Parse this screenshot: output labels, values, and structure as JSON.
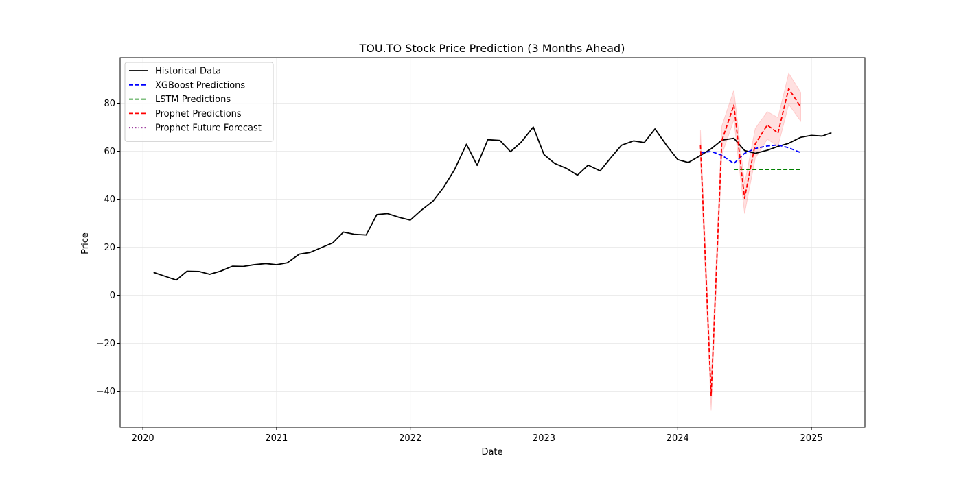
{
  "chart_data": {
    "type": "line",
    "title": "TOU.TO Stock Price Prediction (3 Months Ahead)",
    "xlabel": "Date",
    "ylabel": "Price",
    "xlim": [
      2019.83,
      2025.4
    ],
    "ylim": [
      -55,
      99
    ],
    "x_ticks": [
      2020,
      2021,
      2022,
      2023,
      2024,
      2025
    ],
    "x_tick_labels": [
      "2020",
      "2021",
      "2022",
      "2023",
      "2024",
      "2025"
    ],
    "y_ticks": [
      -40,
      -20,
      0,
      20,
      40,
      60,
      80
    ],
    "y_tick_labels": [
      "−40",
      "−20",
      "0",
      "20",
      "40",
      "60",
      "80"
    ],
    "grid": true,
    "legend_position": "upper-left",
    "series": [
      {
        "name": "Historical Data",
        "color": "#000000",
        "style": "solid",
        "x": [
          2020.08,
          2020.17,
          2020.25,
          2020.33,
          2020.42,
          2020.5,
          2020.58,
          2020.67,
          2020.75,
          2020.83,
          2020.92,
          2021.0,
          2021.08,
          2021.17,
          2021.25,
          2021.33,
          2021.42,
          2021.5,
          2021.58,
          2021.67,
          2021.75,
          2021.83,
          2021.92,
          2022.0,
          2022.08,
          2022.17,
          2022.25,
          2022.33,
          2022.42,
          2022.5,
          2022.58,
          2022.67,
          2022.75,
          2022.83,
          2022.92,
          2023.0,
          2023.08,
          2023.17,
          2023.25,
          2023.33,
          2023.42,
          2023.5,
          2023.58,
          2023.67,
          2023.75,
          2023.83,
          2023.92,
          2024.0,
          2024.08,
          2024.17,
          2024.25,
          2024.33,
          2024.42,
          2024.5,
          2024.58,
          2024.67,
          2024.75,
          2024.83,
          2024.92,
          2025.0,
          2025.08,
          2025.15
        ],
        "values": [
          9.5,
          7.8,
          6.3,
          10.0,
          9.9,
          8.7,
          10.0,
          12.1,
          12.0,
          12.7,
          13.2,
          12.7,
          13.5,
          17.1,
          17.8,
          19.7,
          21.8,
          26.3,
          25.4,
          25.1,
          33.6,
          34.0,
          32.4,
          31.3,
          35.3,
          39.2,
          45.0,
          52.2,
          62.9,
          54.1,
          64.8,
          64.5,
          59.8,
          63.8,
          70.1,
          58.6,
          54.9,
          52.8,
          50.0,
          54.2,
          51.8,
          57.3,
          62.5,
          64.3,
          63.6,
          69.3,
          62.2,
          56.5,
          55.3,
          58.2,
          61.0,
          64.6,
          65.4,
          60.3,
          59.1,
          60.4,
          62.0,
          63.3,
          65.8,
          66.6,
          66.3,
          67.7
        ]
      },
      {
        "name": "XGBoost Predictions",
        "color": "#0000ff",
        "style": "dashed",
        "x": [
          2024.17,
          2024.25,
          2024.33,
          2024.42,
          2024.5,
          2024.58,
          2024.67,
          2024.75,
          2024.83,
          2024.92
        ],
        "values": [
          59.3,
          59.9,
          58.3,
          54.9,
          59.1,
          61.1,
          62.2,
          62.6,
          61.4,
          59.4
        ]
      },
      {
        "name": "LSTM Predictions",
        "color": "#008000",
        "style": "dashed",
        "x": [
          2024.42,
          2024.5,
          2024.58,
          2024.67,
          2024.75,
          2024.83,
          2024.92
        ],
        "values": [
          52.4,
          52.4,
          52.4,
          52.4,
          52.4,
          52.4,
          52.4
        ]
      },
      {
        "name": "Prophet Predictions",
        "color": "#ff0000",
        "style": "dashed",
        "x": [
          2024.17,
          2024.25,
          2024.33,
          2024.42,
          2024.5,
          2024.58,
          2024.67,
          2024.75,
          2024.83,
          2024.92
        ],
        "values": [
          62.6,
          -41.8,
          64.4,
          79.2,
          40.4,
          63.1,
          70.9,
          67.6,
          86.1,
          78.4
        ],
        "band_lower": [
          56.5,
          -48.0,
          58.5,
          73.0,
          34.0,
          57.0,
          65.0,
          62.0,
          79.5,
          72.5
        ],
        "band_upper": [
          69.0,
          -35.5,
          70.5,
          85.5,
          46.5,
          69.5,
          76.5,
          74.0,
          92.5,
          84.5
        ]
      },
      {
        "name": "Prophet Future Forecast",
        "color": "#800080",
        "style": "dotted",
        "x": [],
        "values": []
      }
    ]
  }
}
